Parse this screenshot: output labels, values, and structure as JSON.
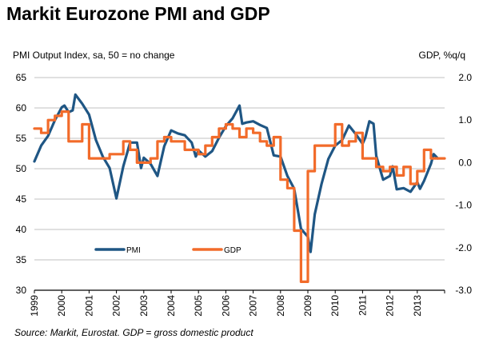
{
  "chart_data": {
    "type": "line",
    "title": "Markit Eurozone PMI and GDP",
    "ylabel_left": "PMI Output Index, sa, 50 = no change",
    "ylabel_right": "GDP, %q/q",
    "source": "Source: Markit, Eurostat. GDP = gross domestic product",
    "x_ticks": [
      "1999",
      "2000",
      "2001",
      "2002",
      "2003",
      "2004",
      "2005",
      "2006",
      "2007",
      "2008",
      "2009",
      "2010",
      "2011",
      "2012",
      "2013"
    ],
    "xlim": [
      1999,
      2014
    ],
    "y_left": {
      "ticks": [
        30,
        35,
        40,
        45,
        50,
        55,
        60,
        65
      ],
      "lim": [
        30,
        65
      ]
    },
    "y_right": {
      "ticks": [
        "-3.0",
        "-2.0",
        "-1.0",
        "0.0",
        "1.0",
        "2.0"
      ],
      "lim": [
        -3.0,
        2.0
      ]
    },
    "grid": true,
    "legend": {
      "position": "bottom-left",
      "entries": [
        "PMI",
        "GDP"
      ]
    },
    "series": [
      {
        "name": "PMI",
        "axis": "left",
        "color": "#1f5684",
        "x": [
          1999.0,
          1999.25,
          1999.5,
          1999.75,
          2000.0,
          2000.1,
          2000.25,
          2000.4,
          2000.5,
          2000.75,
          2001.0,
          2001.25,
          2001.5,
          2001.75,
          2002.0,
          2002.25,
          2002.5,
          2002.75,
          2002.9,
          2003.0,
          2003.25,
          2003.5,
          2003.75,
          2004.0,
          2004.25,
          2004.5,
          2004.75,
          2004.9,
          2005.0,
          2005.25,
          2005.5,
          2005.75,
          2006.0,
          2006.25,
          2006.5,
          2006.6,
          2006.75,
          2007.0,
          2007.25,
          2007.5,
          2007.75,
          2008.0,
          2008.25,
          2008.5,
          2008.75,
          2009.0,
          2009.1,
          2009.25,
          2009.5,
          2009.75,
          2010.0,
          2010.25,
          2010.5,
          2010.75,
          2011.0,
          2011.1,
          2011.25,
          2011.4,
          2011.5,
          2011.75,
          2012.0,
          2012.1,
          2012.25,
          2012.5,
          2012.75,
          2013.0,
          2013.1,
          2013.25,
          2013.5,
          2013.6,
          2013.75
        ],
        "values": [
          51.2,
          53.8,
          55.4,
          58.0,
          60.1,
          60.4,
          59.3,
          59.6,
          62.2,
          60.7,
          58.9,
          54.7,
          52.0,
          50.1,
          45.1,
          50.4,
          54.3,
          54.3,
          50.1,
          51.8,
          50.8,
          48.8,
          53.7,
          56.3,
          55.8,
          55.5,
          54.3,
          52.0,
          53.0,
          52.0,
          52.9,
          55.1,
          57.0,
          58.3,
          60.4,
          57.4,
          57.6,
          57.8,
          57.2,
          56.7,
          52.2,
          52.0,
          48.8,
          46.7,
          40.1,
          38.8,
          36.3,
          42.5,
          47.5,
          51.6,
          53.8,
          54.7,
          57.1,
          55.7,
          54.1,
          55.1,
          57.8,
          57.4,
          52.1,
          48.2,
          48.8,
          50.4,
          46.6,
          46.8,
          46.2,
          47.8,
          46.7,
          48.0,
          50.8,
          52.4,
          51.7
        ]
      },
      {
        "name": "GDP",
        "axis": "right",
        "color": "#f26b2a",
        "x": [
          1999.0,
          1999.25,
          1999.5,
          1999.75,
          2000.0,
          2000.25,
          2000.5,
          2000.75,
          2001.0,
          2001.25,
          2001.5,
          2001.75,
          2002.0,
          2002.25,
          2002.5,
          2002.75,
          2003.0,
          2003.25,
          2003.5,
          2003.75,
          2004.0,
          2004.25,
          2004.5,
          2004.75,
          2005.0,
          2005.25,
          2005.5,
          2005.75,
          2006.0,
          2006.25,
          2006.5,
          2006.75,
          2007.0,
          2007.25,
          2007.5,
          2007.75,
          2008.0,
          2008.25,
          2008.5,
          2008.75,
          2009.0,
          2009.25,
          2009.5,
          2009.75,
          2010.0,
          2010.25,
          2010.5,
          2010.75,
          2011.0,
          2011.25,
          2011.5,
          2011.75,
          2012.0,
          2012.25,
          2012.5,
          2012.75,
          2013.0,
          2013.25,
          2013.5,
          2013.75
        ],
        "values": [
          0.8,
          0.7,
          1.0,
          1.1,
          1.2,
          0.5,
          0.5,
          0.9,
          0.1,
          0.1,
          0.1,
          0.2,
          0.2,
          0.5,
          0.3,
          0.0,
          0.0,
          0.1,
          0.5,
          0.6,
          0.5,
          0.5,
          0.3,
          0.3,
          0.2,
          0.4,
          0.6,
          0.8,
          0.9,
          0.8,
          0.6,
          0.8,
          0.7,
          0.5,
          0.4,
          0.6,
          -0.4,
          -0.6,
          -1.6,
          -2.8,
          -0.2,
          0.4,
          0.4,
          0.4,
          0.9,
          0.4,
          0.5,
          0.7,
          0.1,
          0.1,
          -0.1,
          -0.2,
          -0.1,
          -0.3,
          -0.1,
          -0.5,
          -0.2,
          0.3,
          0.1,
          0.1
        ]
      }
    ]
  }
}
